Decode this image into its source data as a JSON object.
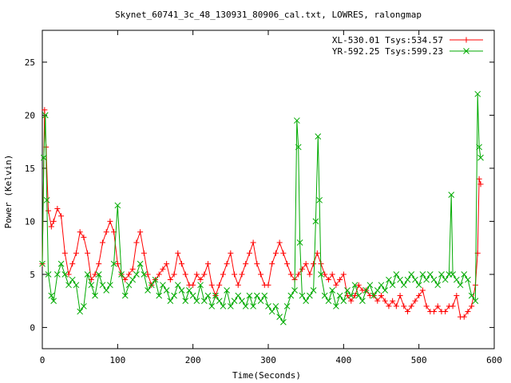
{
  "chart_data": {
    "type": "line",
    "title": "Skynet_60741_3c_48_130931_80906_cal.txt, LOWRES, ralongmap",
    "xlabel": "Time(Seconds)",
    "ylabel": "Power (Kelvin)",
    "xlim": [
      0,
      600
    ],
    "ylim": [
      -2,
      28
    ],
    "x_ticks": [
      0,
      100,
      200,
      300,
      400,
      500,
      600
    ],
    "y_ticks": [
      0,
      5,
      10,
      15,
      20,
      25
    ],
    "grid": false,
    "legend_position": "top-right",
    "series": [
      {
        "name": "XL-530.01 Tsys:534.57",
        "color": "#ff0000",
        "marker": "plus",
        "x": [
          0,
          3,
          5,
          8,
          12,
          15,
          20,
          25,
          30,
          35,
          40,
          45,
          50,
          55,
          60,
          65,
          70,
          75,
          80,
          85,
          90,
          95,
          100,
          105,
          110,
          115,
          120,
          125,
          130,
          135,
          140,
          145,
          150,
          155,
          160,
          165,
          170,
          175,
          180,
          185,
          190,
          195,
          200,
          205,
          210,
          215,
          220,
          225,
          230,
          235,
          240,
          245,
          250,
          255,
          260,
          265,
          270,
          275,
          280,
          285,
          290,
          295,
          300,
          305,
          310,
          315,
          320,
          325,
          330,
          335,
          340,
          345,
          350,
          355,
          360,
          365,
          370,
          375,
          380,
          385,
          390,
          395,
          400,
          405,
          410,
          415,
          420,
          425,
          430,
          435,
          440,
          445,
          450,
          455,
          460,
          465,
          470,
          475,
          480,
          485,
          490,
          495,
          500,
          505,
          510,
          515,
          520,
          525,
          530,
          535,
          540,
          545,
          550,
          555,
          560,
          565,
          570,
          575,
          578,
          580,
          582
        ],
        "y": [
          6,
          20.5,
          17,
          11,
          9.5,
          10,
          11.2,
          10.5,
          7,
          5,
          6,
          7,
          9,
          8.5,
          7,
          4.5,
          5,
          6,
          8,
          9,
          10,
          9,
          6,
          5,
          4.5,
          5,
          5.5,
          8,
          9,
          7,
          5,
          4,
          4.5,
          5,
          5.5,
          6,
          4.5,
          5,
          7,
          6,
          5,
          4,
          4,
          5,
          4.5,
          5,
          6,
          4,
          3,
          4,
          5,
          6,
          7,
          5,
          4,
          5,
          6,
          7,
          8,
          6,
          5,
          4,
          4,
          6,
          7,
          8,
          7,
          6,
          5,
          4.5,
          5,
          5.5,
          6,
          5,
          6,
          7,
          6,
          5,
          4.5,
          5,
          4,
          4.5,
          5,
          3,
          2.5,
          3,
          4,
          3.5,
          3.5,
          3,
          3,
          2.5,
          3,
          2.5,
          2,
          2.5,
          2,
          3,
          2,
          1.5,
          2,
          2.5,
          3,
          3.5,
          2,
          1.5,
          1.5,
          2,
          1.5,
          1.5,
          2,
          2,
          3,
          1,
          1,
          1.5,
          2,
          4,
          7,
          14,
          13.5
        ]
      },
      {
        "name": "YR-592.25 Tsys:599.23",
        "color": "#00aa00",
        "marker": "cross",
        "x": [
          0,
          2,
          4,
          6,
          8,
          12,
          15,
          20,
          25,
          30,
          35,
          40,
          45,
          50,
          55,
          60,
          65,
          70,
          75,
          80,
          85,
          90,
          95,
          100,
          105,
          110,
          115,
          120,
          125,
          130,
          135,
          140,
          145,
          150,
          155,
          160,
          165,
          170,
          175,
          180,
          185,
          190,
          195,
          200,
          205,
          210,
          215,
          220,
          225,
          230,
          235,
          240,
          245,
          250,
          255,
          260,
          265,
          270,
          275,
          280,
          285,
          290,
          295,
          300,
          305,
          310,
          315,
          320,
          325,
          330,
          335,
          338,
          340,
          342,
          345,
          350,
          355,
          360,
          363,
          366,
          368,
          370,
          375,
          380,
          385,
          390,
          395,
          400,
          405,
          410,
          415,
          420,
          425,
          430,
          435,
          440,
          445,
          450,
          455,
          460,
          465,
          470,
          475,
          480,
          485,
          490,
          495,
          500,
          505,
          510,
          515,
          520,
          525,
          530,
          535,
          540,
          543,
          545,
          550,
          555,
          560,
          565,
          570,
          575,
          578,
          580,
          582
        ],
        "y": [
          6,
          16,
          20,
          12,
          5,
          3,
          2.5,
          5,
          6,
          5,
          4,
          4.5,
          4,
          1.5,
          2,
          5,
          4,
          3,
          5,
          4,
          3.5,
          4,
          6,
          11.5,
          5,
          3,
          4,
          4.5,
          5,
          6,
          5,
          3.5,
          4,
          4.5,
          3,
          4,
          3.5,
          2.5,
          3,
          4,
          3.5,
          2.5,
          3.5,
          3,
          2.5,
          4,
          2.5,
          3,
          2,
          3,
          2.5,
          2,
          3.5,
          2,
          2.5,
          3,
          2.5,
          2,
          3,
          2,
          3,
          2.5,
          3,
          2,
          1.5,
          2,
          1,
          0.5,
          2,
          3,
          3.5,
          19.5,
          17,
          8,
          3,
          2.5,
          3,
          3.5,
          10,
          18,
          12,
          5,
          3,
          2.5,
          3.5,
          2,
          3,
          2.5,
          3.5,
          3,
          4,
          3,
          2.5,
          3.5,
          4,
          3,
          3.5,
          4,
          3.5,
          4.5,
          4,
          5,
          4.5,
          4,
          4.5,
          5,
          4.5,
          4,
          5,
          4.5,
          5,
          4.5,
          4,
          5,
          4.5,
          5,
          12.5,
          5,
          4.5,
          4,
          5,
          4.5,
          3,
          2.5,
          22,
          17,
          16
        ]
      }
    ]
  }
}
